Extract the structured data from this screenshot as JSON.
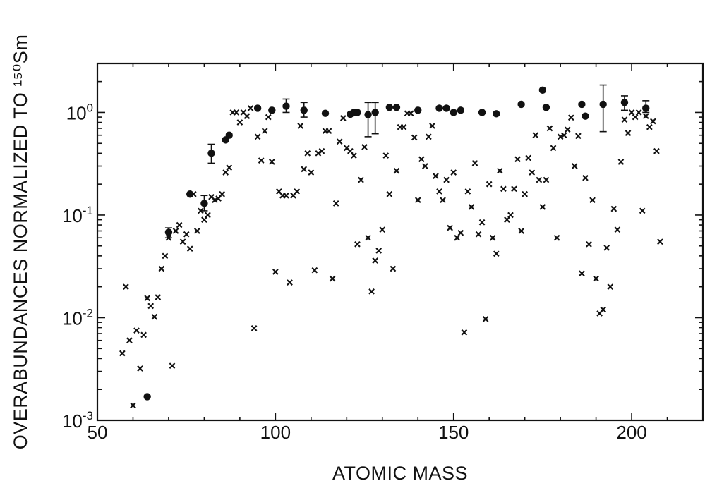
{
  "chart_data": {
    "type": "scatter",
    "xlabel": "ATOMIC MASS",
    "ylabel": "OVERABUNDANCES NORMALIZED TO ¹⁵⁰Sm",
    "xlim": [
      50,
      220
    ],
    "ylim": [
      0.001,
      3
    ],
    "y_scale": "log",
    "grid": false,
    "x_ticks": [
      {
        "value": 50,
        "label": "50"
      },
      {
        "value": 100,
        "label": "100"
      },
      {
        "value": 150,
        "label": "150"
      },
      {
        "value": 200,
        "label": "200"
      }
    ],
    "y_ticks": [
      {
        "value": 0.001,
        "base": "10",
        "exp": "-3"
      },
      {
        "value": 0.01,
        "base": "10",
        "exp": "-2"
      },
      {
        "value": 0.1,
        "base": "10",
        "exp": "-1"
      },
      {
        "value": 1,
        "base": "10",
        "exp": "0"
      }
    ],
    "series": [
      {
        "marker": "x",
        "points": [
          [
            57,
            0.0045
          ],
          [
            58,
            0.02
          ],
          [
            59,
            0.006
          ],
          [
            60,
            0.0014
          ],
          [
            61,
            0.0075
          ],
          [
            62,
            0.0032
          ],
          [
            63,
            0.0068
          ],
          [
            64,
            0.0155
          ],
          [
            65,
            0.013
          ],
          [
            66,
            0.0102
          ],
          [
            67,
            0.0158
          ],
          [
            68,
            0.03
          ],
          [
            69,
            0.04
          ],
          [
            70,
            0.06
          ],
          [
            71,
            0.0034
          ],
          [
            72,
            0.07
          ],
          [
            73,
            0.08
          ],
          [
            74,
            0.055
          ],
          [
            75,
            0.065
          ],
          [
            76,
            0.047
          ],
          [
            77,
            0.16
          ],
          [
            78,
            0.07
          ],
          [
            79,
            0.11
          ],
          [
            80,
            0.09
          ],
          [
            81,
            0.1
          ],
          [
            82,
            0.15
          ],
          [
            83,
            0.14
          ],
          [
            84,
            0.145
          ],
          [
            85,
            0.16
          ],
          [
            86,
            0.26
          ],
          [
            87,
            0.29
          ],
          [
            88,
            1.0
          ],
          [
            89,
            1.0
          ],
          [
            90,
            0.8
          ],
          [
            91,
            1.0
          ],
          [
            92,
            0.92
          ],
          [
            93,
            1.1
          ],
          [
            94,
            0.0079
          ],
          [
            95,
            0.58
          ],
          [
            96,
            0.34
          ],
          [
            97,
            0.66
          ],
          [
            98,
            0.9
          ],
          [
            99,
            0.33
          ],
          [
            100,
            0.028
          ],
          [
            101,
            0.17
          ],
          [
            102,
            0.155
          ],
          [
            103,
            0.155
          ],
          [
            104,
            0.022
          ],
          [
            105,
            0.155
          ],
          [
            106,
            0.17
          ],
          [
            107,
            0.74
          ],
          [
            108,
            0.28
          ],
          [
            109,
            0.4
          ],
          [
            110,
            0.26
          ],
          [
            111,
            0.029
          ],
          [
            112,
            0.4
          ],
          [
            113,
            0.42
          ],
          [
            114,
            0.66
          ],
          [
            115,
            0.66
          ],
          [
            116,
            0.024
          ],
          [
            117,
            0.13
          ],
          [
            118,
            0.52
          ],
          [
            119,
            0.88
          ],
          [
            120,
            0.45
          ],
          [
            121,
            0.42
          ],
          [
            122,
            0.38
          ],
          [
            123,
            0.052
          ],
          [
            124,
            0.22
          ],
          [
            125,
            0.46
          ],
          [
            126,
            0.06
          ],
          [
            127,
            0.018
          ],
          [
            128,
            0.036
          ],
          [
            129,
            0.045
          ],
          [
            130,
            0.072
          ],
          [
            131,
            0.38
          ],
          [
            132,
            0.16
          ],
          [
            133,
            0.03
          ],
          [
            134,
            0.27
          ],
          [
            135,
            0.72
          ],
          [
            136,
            0.72
          ],
          [
            137,
            0.98
          ],
          [
            138,
            0.98
          ],
          [
            139,
            0.57
          ],
          [
            140,
            0.14
          ],
          [
            141,
            0.35
          ],
          [
            142,
            0.3
          ],
          [
            143,
            0.58
          ],
          [
            144,
            0.74
          ],
          [
            145,
            0.24
          ],
          [
            146,
            0.17
          ],
          [
            147,
            0.14
          ],
          [
            148,
            0.22
          ],
          [
            149,
            0.075
          ],
          [
            150,
            0.26
          ],
          [
            151,
            0.06
          ],
          [
            152,
            0.067
          ],
          [
            153,
            0.0072
          ],
          [
            154,
            0.17
          ],
          [
            155,
            0.12
          ],
          [
            156,
            0.32
          ],
          [
            157,
            0.065
          ],
          [
            158,
            0.085
          ],
          [
            159,
            0.0097
          ],
          [
            160,
            0.2
          ],
          [
            161,
            0.06
          ],
          [
            162,
            0.042
          ],
          [
            163,
            0.27
          ],
          [
            164,
            0.18
          ],
          [
            165,
            0.09
          ],
          [
            166,
            0.1
          ],
          [
            167,
            0.18
          ],
          [
            168,
            0.35
          ],
          [
            169,
            0.07
          ],
          [
            170,
            0.16
          ],
          [
            171,
            0.36
          ],
          [
            172,
            0.26
          ],
          [
            173,
            0.6
          ],
          [
            174,
            0.22
          ],
          [
            175,
            0.12
          ],
          [
            176,
            0.22
          ],
          [
            177,
            0.7
          ],
          [
            178,
            0.45
          ],
          [
            179,
            0.06
          ],
          [
            180,
            0.58
          ],
          [
            181,
            0.6
          ],
          [
            182,
            0.68
          ],
          [
            183,
            0.89
          ],
          [
            184,
            0.3
          ],
          [
            185,
            0.59
          ],
          [
            186,
            0.027
          ],
          [
            187,
            0.23
          ],
          [
            188,
            0.052
          ],
          [
            189,
            0.14
          ],
          [
            190,
            0.024
          ],
          [
            191,
            0.011
          ],
          [
            192,
            0.012
          ],
          [
            193,
            0.048
          ],
          [
            194,
            0.02
          ],
          [
            195,
            0.115
          ],
          [
            196,
            0.072
          ],
          [
            197,
            0.33
          ],
          [
            198,
            0.85
          ],
          [
            199,
            0.63
          ],
          [
            200,
            1.0
          ],
          [
            201,
            0.9
          ],
          [
            202,
            1.0
          ],
          [
            203,
            0.11
          ],
          [
            204,
            0.92
          ],
          [
            205,
            0.72
          ],
          [
            206,
            0.82
          ],
          [
            207,
            0.42
          ],
          [
            208,
            0.055
          ]
        ]
      },
      {
        "marker": "filled-circle",
        "points": [
          {
            "x": 64,
            "y": 0.0017
          },
          {
            "x": 70,
            "y": 0.068,
            "err": [
              0.06,
              0.075
            ]
          },
          {
            "x": 76,
            "y": 0.16
          },
          {
            "x": 80,
            "y": 0.13,
            "err": [
              0.11,
              0.155
            ]
          },
          {
            "x": 82,
            "y": 0.4,
            "err": [
              0.32,
              0.49
            ]
          },
          {
            "x": 86,
            "y": 0.54
          },
          {
            "x": 87,
            "y": 0.6
          },
          {
            "x": 95,
            "y": 1.1
          },
          {
            "x": 99,
            "y": 1.05
          },
          {
            "x": 103,
            "y": 1.15,
            "err": [
              1.0,
              1.35
            ]
          },
          {
            "x": 108,
            "y": 1.05,
            "err": [
              0.9,
              1.25
            ]
          },
          {
            "x": 114,
            "y": 0.98
          },
          {
            "x": 121,
            "y": 0.96
          },
          {
            "x": 122,
            "y": 1.0
          },
          {
            "x": 123,
            "y": 1.0
          },
          {
            "x": 126,
            "y": 0.95,
            "err": [
              0.58,
              1.25
            ]
          },
          {
            "x": 128,
            "y": 1.0,
            "err": [
              0.62,
              1.25
            ]
          },
          {
            "x": 132,
            "y": 1.12
          },
          {
            "x": 134,
            "y": 1.12
          },
          {
            "x": 140,
            "y": 1.05
          },
          {
            "x": 146,
            "y": 1.1
          },
          {
            "x": 148,
            "y": 1.1
          },
          {
            "x": 150,
            "y": 1.0
          },
          {
            "x": 152,
            "y": 1.05
          },
          {
            "x": 158,
            "y": 1.0
          },
          {
            "x": 162,
            "y": 0.97
          },
          {
            "x": 169,
            "y": 1.2
          },
          {
            "x": 175,
            "y": 1.65
          },
          {
            "x": 176,
            "y": 1.12
          },
          {
            "x": 186,
            "y": 1.2
          },
          {
            "x": 187,
            "y": 0.92
          },
          {
            "x": 192,
            "y": 1.2,
            "err": [
              0.65,
              1.85
            ]
          },
          {
            "x": 198,
            "y": 1.25,
            "err": [
              1.05,
              1.45
            ]
          },
          {
            "x": 204,
            "y": 1.1,
            "err": [
              1.0,
              1.3
            ]
          }
        ]
      }
    ]
  }
}
